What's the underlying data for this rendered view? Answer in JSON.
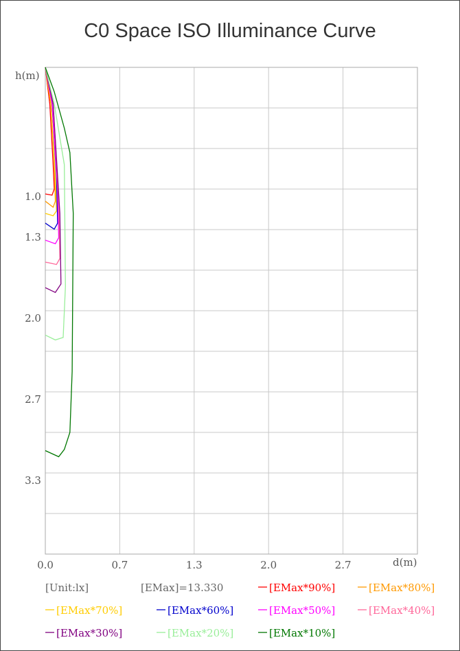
{
  "title": "C0 Space ISO Illuminance Curve",
  "chart_data": {
    "type": "line",
    "title": "C0 Space ISO Illuminance Curve",
    "xlabel": "d(m)",
    "ylabel": "h(m)",
    "x_ticks": [
      "0.0",
      "0.7",
      "1.3",
      "2.0",
      "2.7"
    ],
    "y_ticks": [
      "1.0",
      "1.3",
      "2.0",
      "2.7",
      "3.3"
    ],
    "xlim": [
      0,
      3.33
    ],
    "ylim_inverted": [
      0,
      4.0
    ],
    "grid": true,
    "unit_label": "[Unit:lx]",
    "emax_label": "[EMax]=13.330",
    "series": [
      {
        "name": "[EMax*90%]",
        "color": "#ff0000",
        "points": [
          [
            0,
            0
          ],
          [
            0.04,
            0.3
          ],
          [
            0.07,
            0.8
          ],
          [
            0.08,
            1.0
          ],
          [
            0.06,
            1.05
          ],
          [
            0.0,
            1.04
          ]
        ]
      },
      {
        "name": "[EMax*80%]",
        "color": "#ff9900",
        "points": [
          [
            0,
            0
          ],
          [
            0.05,
            0.3
          ],
          [
            0.08,
            0.8
          ],
          [
            0.09,
            1.1
          ],
          [
            0.07,
            1.15
          ],
          [
            0.0,
            1.1
          ]
        ]
      },
      {
        "name": "[EMax*70%]",
        "color": "#ffcc00",
        "points": [
          [
            0,
            0
          ],
          [
            0.05,
            0.3
          ],
          [
            0.09,
            0.9
          ],
          [
            0.1,
            1.18
          ],
          [
            0.07,
            1.22
          ],
          [
            0.0,
            1.2
          ]
        ]
      },
      {
        "name": "[EMax*60%]",
        "color": "#0000cc",
        "points": [
          [
            0,
            0
          ],
          [
            0.06,
            0.3
          ],
          [
            0.1,
            0.9
          ],
          [
            0.11,
            1.28
          ],
          [
            0.08,
            1.33
          ],
          [
            0.0,
            1.28
          ]
        ]
      },
      {
        "name": "[EMax*50%]",
        "color": "#ff00ff",
        "points": [
          [
            0,
            0
          ],
          [
            0.06,
            0.3
          ],
          [
            0.11,
            1.0
          ],
          [
            0.12,
            1.4
          ],
          [
            0.09,
            1.45
          ],
          [
            0.0,
            1.42
          ]
        ]
      },
      {
        "name": "[EMax*40%]",
        "color": "#ff6699",
        "points": [
          [
            0,
            0
          ],
          [
            0.07,
            0.3
          ],
          [
            0.12,
            1.1
          ],
          [
            0.13,
            1.57
          ],
          [
            0.1,
            1.62
          ],
          [
            0.0,
            1.6
          ]
        ]
      },
      {
        "name": "[EMax*30%]",
        "color": "#800080",
        "points": [
          [
            0,
            0
          ],
          [
            0.07,
            0.3
          ],
          [
            0.13,
            1.2
          ],
          [
            0.14,
            1.78
          ],
          [
            0.09,
            1.85
          ],
          [
            0.0,
            1.81
          ]
        ]
      },
      {
        "name": "[EMax*20%]",
        "color": "#99ee99",
        "points": [
          [
            0,
            0
          ],
          [
            0.08,
            0.3
          ],
          [
            0.17,
            0.8
          ],
          [
            0.18,
            1.8
          ],
          [
            0.16,
            2.22
          ],
          [
            0.09,
            2.24
          ],
          [
            0.0,
            2.2
          ]
        ]
      },
      {
        "name": "[EMax*10%]",
        "color": "#007700",
        "points": [
          [
            0,
            0
          ],
          [
            0.08,
            0.2
          ],
          [
            0.17,
            0.5
          ],
          [
            0.22,
            0.7
          ],
          [
            0.25,
            1.2
          ],
          [
            0.24,
            2.5
          ],
          [
            0.22,
            3.0
          ],
          [
            0.17,
            3.14
          ],
          [
            0.12,
            3.2
          ],
          [
            0.0,
            3.15
          ]
        ]
      }
    ]
  },
  "legend_rows": [
    [
      {
        "text": "[Unit:lx]",
        "color": "#666666",
        "dash": false
      },
      {
        "text": "[EMax]=13.330",
        "color": "#666666",
        "dash": false
      },
      {
        "text": "[EMax*90%]",
        "color": "#ff0000",
        "dash": true
      },
      {
        "text": "[EMax*80%]",
        "color": "#ff9900",
        "dash": true
      }
    ],
    [
      {
        "text": "[EMax*70%]",
        "color": "#ffcc00",
        "dash": true
      },
      {
        "text": "[EMax*60%]",
        "color": "#0000cc",
        "dash": true
      },
      {
        "text": "[EMax*50%]",
        "color": "#ff00ff",
        "dash": true
      },
      {
        "text": "[EMax*40%]",
        "color": "#ff6699",
        "dash": true
      }
    ],
    [
      {
        "text": "[EMax*30%]",
        "color": "#800080",
        "dash": true
      },
      {
        "text": "[EMax*20%]",
        "color": "#99ee99",
        "dash": true
      },
      {
        "text": "[EMax*10%]",
        "color": "#007700",
        "dash": true
      }
    ]
  ]
}
